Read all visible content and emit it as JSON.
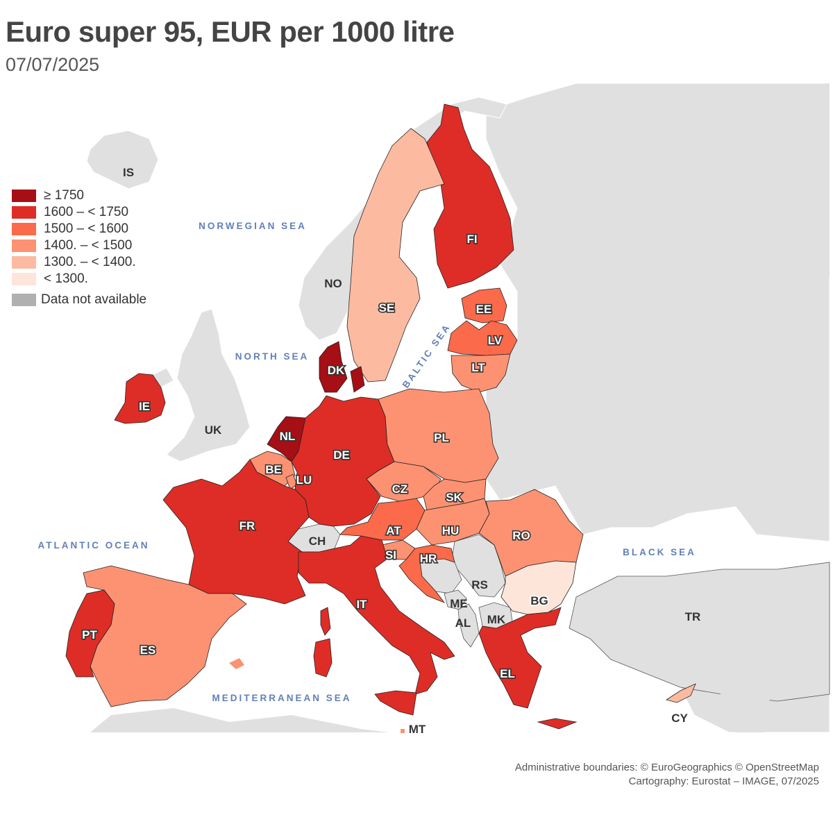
{
  "title": "Euro super 95, EUR per 1000 litre",
  "subtitle": "07/07/2025",
  "legend": [
    {
      "label": "≥ 1750",
      "color": "#a50f15"
    },
    {
      "label": "1600 – < 1750",
      "color": "#de2d26"
    },
    {
      "label": "1500 – < 1600",
      "color": "#fb6a4a"
    },
    {
      "label": "1400. – < 1500",
      "color": "#fc9272"
    },
    {
      "label": "1300. – < 1400.",
      "color": "#fcbba1"
    },
    {
      "label": "< 1300.",
      "color": "#fee5d9"
    }
  ],
  "legend_na": {
    "label": "Data not available",
    "color": "#b0b0b0"
  },
  "seas": {
    "norwegian": "NORWEGIAN SEA",
    "north": "NORTH SEA",
    "atlantic": "ATLANTIC OCEAN",
    "baltic": "BALTIC SEA",
    "black": "BLACK SEA",
    "mediterranean": "MEDITERRANEAN SEA"
  },
  "countries": {
    "IS": {
      "label": "IS",
      "class": "na"
    },
    "NO": {
      "label": "NO",
      "class": "na"
    },
    "UK": {
      "label": "UK",
      "class": "na"
    },
    "CH": {
      "label": "CH",
      "class": "na"
    },
    "RS": {
      "label": "RS",
      "class": "na"
    },
    "ME": {
      "label": "ME",
      "class": "na"
    },
    "AL": {
      "label": "AL",
      "class": "na"
    },
    "MK": {
      "label": "MK",
      "class": "na"
    },
    "TR": {
      "label": "TR",
      "class": "na"
    },
    "FI": {
      "label": "FI",
      "class": "1600 – < 1750"
    },
    "SE": {
      "label": "SE",
      "class": "1300. – < 1400."
    },
    "EE": {
      "label": "EE",
      "class": "1500 – < 1600"
    },
    "LV": {
      "label": "LV",
      "class": "1500 – < 1600"
    },
    "LT": {
      "label": "LT",
      "class": "1400. – < 1500"
    },
    "DK": {
      "label": "DK",
      "class": "≥ 1750"
    },
    "IE": {
      "label": "IE",
      "class": "1600 – < 1750"
    },
    "NL": {
      "label": "NL",
      "class": "≥ 1750"
    },
    "BE": {
      "label": "BE",
      "class": "1400. – < 1500"
    },
    "LU": {
      "label": "LU",
      "class": "1400. – < 1500"
    },
    "DE": {
      "label": "DE",
      "class": "1600 – < 1750"
    },
    "PL": {
      "label": "PL",
      "class": "1400. – < 1500"
    },
    "CZ": {
      "label": "CZ",
      "class": "1400. – < 1500"
    },
    "SK": {
      "label": "SK",
      "class": "1400. – < 1500"
    },
    "AT": {
      "label": "AT",
      "class": "1500 – < 1600"
    },
    "HU": {
      "label": "HU",
      "class": "1400. – < 1500"
    },
    "RO": {
      "label": "RO",
      "class": "1400. – < 1500"
    },
    "SI": {
      "label": "SI",
      "class": "1400. – < 1500"
    },
    "HR": {
      "label": "HR",
      "class": "1500 – < 1600"
    },
    "BG": {
      "label": "BG",
      "class": "< 1300."
    },
    "FR": {
      "label": "FR",
      "class": "1600 – < 1750"
    },
    "ES": {
      "label": "ES",
      "class": "1400. – < 1500"
    },
    "PT": {
      "label": "PT",
      "class": "1600 – < 1750"
    },
    "IT": {
      "label": "IT",
      "class": "1600 – < 1750"
    },
    "EL": {
      "label": "EL",
      "class": "1600 – < 1750"
    },
    "MT": {
      "label": "MT",
      "class": "1400. – < 1500"
    },
    "CY": {
      "label": "CY",
      "class": "1300. – < 1400."
    }
  },
  "credits": {
    "line1": "Administrative boundaries: © EuroGeographics © OpenStreetMap",
    "line2": "Cartography: Eurostat – IMAGE, 07/2025"
  }
}
